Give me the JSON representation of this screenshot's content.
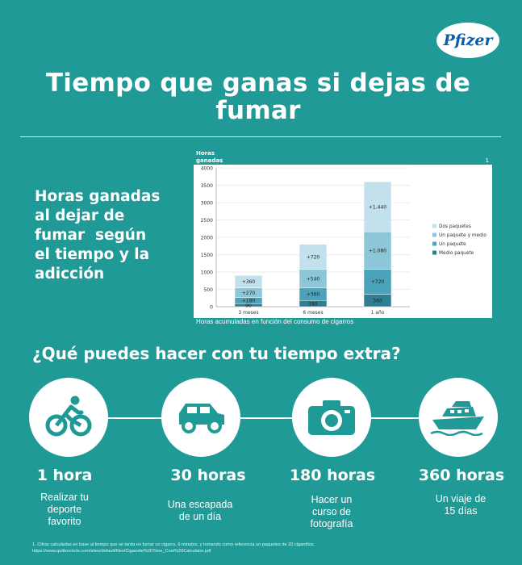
{
  "brand": {
    "logo_text": "Pfizer"
  },
  "header": {
    "title_line1": "Tiempo que ganas si dejas de",
    "title_line2": "fumar"
  },
  "sidebar": {
    "lines": [
      "Horas ganadas",
      "al dejar de",
      "fumar  según",
      "el tiempo y la",
      "adicción"
    ]
  },
  "chart_data": {
    "type": "bar",
    "stacked": true,
    "ylabel_line1": "Horas",
    "ylabel_line2": "ganadas",
    "corner_note": "1",
    "caption": "Horas acumuladas en función del consumo de cigarros",
    "categories": [
      "3 meses",
      "6 meses",
      "1 año"
    ],
    "yticks": [
      0,
      500,
      1000,
      1500,
      2000,
      2500,
      3000,
      3500,
      4000
    ],
    "ylim": [
      0,
      4000
    ],
    "legend_position": "right",
    "series": [
      {
        "name": "Medio paquete",
        "values": [
          90,
          180,
          360
        ],
        "labels": [
          "90",
          "180",
          "360"
        ],
        "color": "#2f7f92"
      },
      {
        "name": "Un paquete",
        "values": [
          180,
          360,
          720
        ],
        "labels": [
          "+180",
          "+360",
          "+720"
        ],
        "color": "#4aa3bb"
      },
      {
        "name": "Un paquete y medio",
        "values": [
          270,
          540,
          1080
        ],
        "labels": [
          "+270",
          "+540",
          "+1.080"
        ],
        "color": "#8cc6d8"
      },
      {
        "name": "Dos paquetes",
        "values": [
          360,
          720,
          1440
        ],
        "labels": [
          "+360",
          "+720",
          "+1.440"
        ],
        "color": "#c3e1ec"
      }
    ]
  },
  "activities": {
    "title": "¿Qué puedes hacer con tu tiempo extra?",
    "items": [
      {
        "icon": "cyclist-icon",
        "hours": "1 hora",
        "text_lines": [
          "Realizar tu",
          "deporte",
          "favorito"
        ]
      },
      {
        "icon": "car-icon",
        "hours": "30 horas",
        "text_lines": [
          "Una escapada",
          "de un día"
        ]
      },
      {
        "icon": "camera-icon",
        "hours": "180 horas",
        "text_lines": [
          "Hacer un",
          "curso de",
          "fotografía"
        ]
      },
      {
        "icon": "ship-icon",
        "hours": "360 horas",
        "text_lines": [
          "Un viaje de",
          "15 días"
        ]
      }
    ]
  },
  "footnote": {
    "line1": "1. Cifras calculadas en base al tiempo que se tarda en fumar un cigarro, 6 minutos, y tomando como referencia un paquetes de 20 cigarrillos.",
    "line2": "https://www.quittercircle.com/sites/default/files/Cigarette%20Time_Cost%20Calculator.pdf"
  },
  "colors": {
    "background": "#1f9a96",
    "icon_fill": "#1f9a96",
    "brand_blue": "#0a5ea8"
  }
}
